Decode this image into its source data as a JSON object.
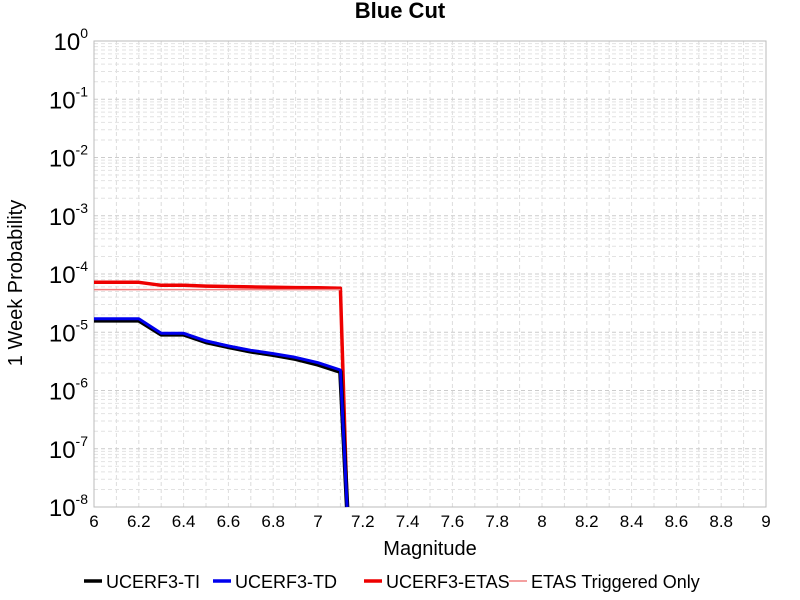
{
  "chart_data": {
    "type": "line",
    "title": "Blue Cut",
    "xlabel": "Magnitude",
    "ylabel": "1 Week Probability",
    "xlim": [
      6,
      9
    ],
    "ylim": [
      1e-08,
      1
    ],
    "y_scale": "log",
    "grid": true,
    "legend_position": "bottom",
    "x_ticks": [
      "6",
      "6.2",
      "6.4",
      "6.6",
      "6.8",
      "7",
      "7.2",
      "7.4",
      "7.6",
      "7.8",
      "8",
      "8.2",
      "8.4",
      "8.6",
      "8.8",
      "9"
    ],
    "y_tick_exponents": [
      "0",
      "-1",
      "-2",
      "-3",
      "-4",
      "-5",
      "-6",
      "-7",
      "-8"
    ],
    "y_tick_base": "10",
    "series": [
      {
        "name": "UCERF3-TI",
        "color": "#000000",
        "x": [
          6.0,
          6.1,
          6.2,
          6.3,
          6.4,
          6.5,
          6.6,
          6.7,
          6.8,
          6.9,
          7.0,
          7.1,
          7.13
        ],
        "y": [
          1.6e-05,
          1.6e-05,
          1.6e-05,
          9.2e-06,
          9.2e-06,
          6.8e-06,
          5.6e-06,
          4.7e-06,
          4.1e-06,
          3.5e-06,
          2.8e-06,
          2.1e-06,
          1e-08
        ]
      },
      {
        "name": "UCERF3-TD",
        "color": "#0000ee",
        "x": [
          6.0,
          6.1,
          6.2,
          6.3,
          6.4,
          6.5,
          6.6,
          6.7,
          6.8,
          6.9,
          7.0,
          7.1,
          7.13
        ],
        "y": [
          1.7e-05,
          1.7e-05,
          1.7e-05,
          9.6e-06,
          9.6e-06,
          7.1e-06,
          5.8e-06,
          4.9e-06,
          4.3e-06,
          3.7e-06,
          3e-06,
          2.25e-06,
          1e-08
        ]
      },
      {
        "name": "UCERF3-ETAS",
        "color": "#ee0000",
        "x": [
          6.0,
          6.1,
          6.2,
          6.3,
          6.4,
          6.5,
          6.6,
          6.7,
          6.8,
          6.9,
          7.0,
          7.1,
          7.13
        ],
        "y": [
          7.2e-05,
          7.2e-05,
          7.2e-05,
          6.4e-05,
          6.4e-05,
          6.2e-05,
          6.1e-05,
          6e-05,
          5.9e-05,
          5.85e-05,
          5.8e-05,
          5.7e-05,
          1e-08
        ]
      },
      {
        "name": "ETAS Triggered Only",
        "color": "#f08080",
        "x": [
          6.0,
          7.1
        ],
        "y": [
          5.4e-05,
          5.4e-05
        ]
      }
    ]
  }
}
